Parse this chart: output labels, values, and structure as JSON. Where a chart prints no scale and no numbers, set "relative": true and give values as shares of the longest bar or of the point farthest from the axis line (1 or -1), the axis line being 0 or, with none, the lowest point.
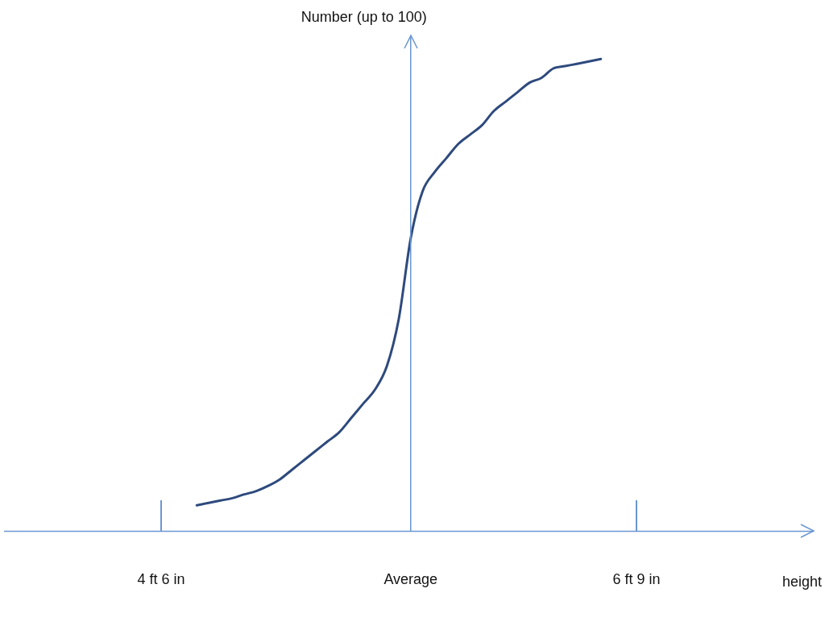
{
  "chart_data": {
    "type": "line",
    "relative": true,
    "ylabel": "Number (up to 100)",
    "annotations": [
      "height"
    ],
    "categories": [
      "4 ft 6 in",
      null,
      null,
      null,
      null,
      null,
      null,
      null,
      null,
      null,
      null,
      null,
      null,
      null,
      null,
      null,
      null,
      null,
      null,
      null,
      null,
      "Average",
      null,
      null,
      null,
      null,
      null,
      null,
      null,
      null,
      null,
      null,
      null,
      null,
      null,
      null,
      null,
      null,
      null,
      null,
      "6 ft 9 in"
    ],
    "ref_lines": [
      {
        "axis": "x",
        "value": "Average"
      }
    ],
    "grid": false,
    "legend": false,
    "marker": "none",
    "line_style": "solid",
    "series": [
      {
        "color": "#2e4a7d",
        "values": [
          null,
          null,
          null,
          0.055,
          0.06,
          0.065,
          0.07,
          0.078,
          0.085,
          0.096,
          0.11,
          0.13,
          0.15,
          0.17,
          0.19,
          0.21,
          0.24,
          0.27,
          0.3,
          0.35,
          0.45,
          0.62,
          0.72,
          0.76,
          0.79,
          0.82,
          0.84,
          0.86,
          0.89,
          0.91,
          0.93,
          0.95,
          0.96,
          0.98,
          0.985,
          0.99,
          0.995,
          1,
          null,
          null,
          null
        ]
      }
    ]
  }
}
